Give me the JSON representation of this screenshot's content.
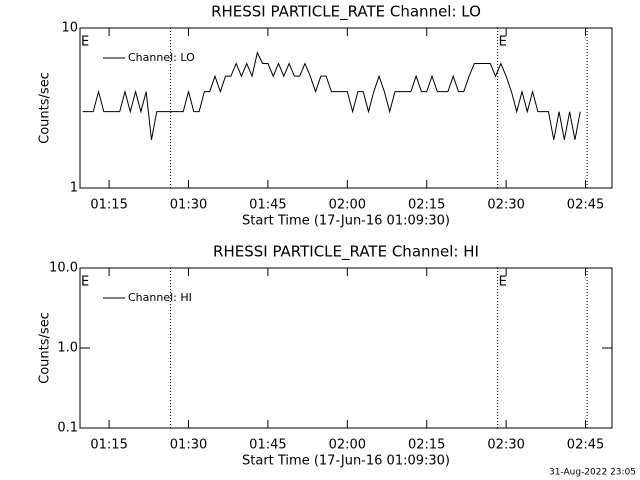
{
  "chart_data": [
    {
      "type": "line",
      "title": "RHESSI PARTICLE_RATE Channel: LO",
      "xlabel": "Start Time (17-Jun-16 01:09:30)",
      "ylabel": "Counts/sec",
      "log_y": true,
      "xlim": [
        69.5,
        170
      ],
      "ylim": [
        1,
        10
      ],
      "xticks": [
        {
          "value": 75,
          "label": "01:15"
        },
        {
          "value": 90,
          "label": "01:30"
        },
        {
          "value": 105,
          "label": "01:45"
        },
        {
          "value": 120,
          "label": "02:00"
        },
        {
          "value": 135,
          "label": "02:15"
        },
        {
          "value": 150,
          "label": "02:30"
        },
        {
          "value": 165,
          "label": "02:45"
        }
      ],
      "yticks": [
        1,
        10
      ],
      "vlines": [
        86.6,
        148.4,
        165.3
      ],
      "annotations": [
        {
          "text": "E",
          "x": 69.5
        },
        {
          "text": "E",
          "x": 148.4
        }
      ],
      "series": [
        {
          "name": "Channel: LO",
          "color": "#000000",
          "x": [
            70,
            71,
            72,
            73,
            74,
            75,
            76,
            77,
            78,
            79,
            80,
            81,
            82,
            83,
            84,
            85,
            86,
            87,
            88,
            89,
            90,
            91,
            92,
            93,
            94,
            95,
            96,
            97,
            98,
            99,
            100,
            101,
            102,
            103,
            104,
            105,
            106,
            107,
            108,
            109,
            110,
            111,
            112,
            113,
            114,
            115,
            116,
            117,
            118,
            119,
            120,
            121,
            122,
            123,
            124,
            125,
            126,
            127,
            128,
            129,
            130,
            131,
            132,
            133,
            134,
            135,
            136,
            137,
            138,
            139,
            140,
            141,
            142,
            143,
            144,
            145,
            146,
            147,
            148,
            149,
            150,
            151,
            152,
            153,
            154,
            155,
            156,
            157,
            158,
            159,
            160,
            161,
            162,
            163,
            164
          ],
          "values": [
            3,
            3,
            3,
            4,
            3,
            3,
            3,
            3,
            4,
            3,
            4,
            3,
            4,
            2,
            3,
            3,
            3,
            3,
            3,
            3,
            4,
            3,
            3,
            4,
            4,
            5,
            4,
            5,
            5,
            6,
            5,
            6,
            5,
            7,
            6,
            6,
            5,
            6,
            5,
            6,
            5,
            5,
            6,
            5,
            4,
            5,
            5,
            4,
            4,
            4,
            4,
            3,
            4,
            4,
            3,
            4,
            5,
            4,
            3,
            4,
            4,
            4,
            4,
            5,
            4,
            4,
            5,
            4,
            4,
            4,
            5,
            4,
            4,
            5,
            6,
            6,
            6,
            6,
            5,
            6,
            5,
            4,
            3,
            4,
            3,
            4,
            3,
            3,
            3,
            2,
            3,
            2,
            3,
            2,
            3
          ]
        }
      ]
    },
    {
      "type": "line",
      "title": "RHESSI PARTICLE_RATE Channel: HI",
      "xlabel": "Start Time (17-Jun-16 01:09:30)",
      "ylabel": "Counts/sec",
      "log_y": true,
      "xlim": [
        69.5,
        170
      ],
      "ylim": [
        0.1,
        10
      ],
      "xticks": [
        {
          "value": 75,
          "label": "01:15"
        },
        {
          "value": 90,
          "label": "01:30"
        },
        {
          "value": 105,
          "label": "01:45"
        },
        {
          "value": 120,
          "label": "02:00"
        },
        {
          "value": 135,
          "label": "02:15"
        },
        {
          "value": 150,
          "label": "02:30"
        },
        {
          "value": 165,
          "label": "02:45"
        }
      ],
      "yticks": [
        0.1,
        {
          "value": 1,
          "label": "1.0"
        },
        {
          "value": 10,
          "label": "10.0"
        }
      ],
      "vlines": [
        86.6,
        148.4,
        165.3
      ],
      "annotations": [
        {
          "text": "E",
          "x": 69.5
        },
        {
          "text": "E",
          "x": 148.4
        }
      ],
      "series": [
        {
          "name": "Channel: HI",
          "color": "#000000",
          "x": [],
          "values": []
        }
      ]
    }
  ],
  "footer": "31-Aug-2022 23:05"
}
